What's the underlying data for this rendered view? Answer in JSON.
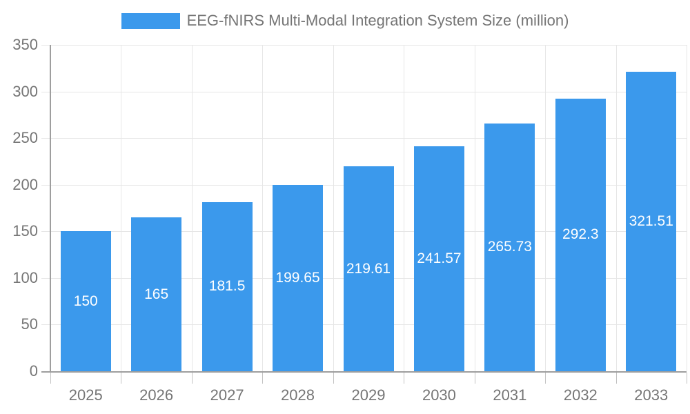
{
  "chart_data": {
    "type": "bar",
    "legend": "EEG-fNIRS Multi-Modal Integration System Size (million)",
    "legend_position": "top",
    "categories": [
      "2025",
      "2026",
      "2027",
      "2028",
      "2029",
      "2030",
      "2031",
      "2032",
      "2033"
    ],
    "values": [
      150,
      165,
      181.5,
      199.65,
      219.61,
      241.57,
      265.73,
      292.3,
      321.51
    ],
    "value_labels": [
      "150",
      "165",
      "181.5",
      "199.65",
      "219.61",
      "241.57",
      "265.73",
      "292.3",
      "321.51"
    ],
    "xlabel": "",
    "ylabel": "",
    "ylim": [
      0,
      350
    ],
    "ytick_interval": 50,
    "ytick_labels": [
      "0",
      "50",
      "100",
      "150",
      "200",
      "250",
      "300",
      "350"
    ],
    "grid": true,
    "colors": {
      "bar": "#3b99ec",
      "bar_label": "#ffffff",
      "axis_text": "#757575",
      "axis_line": "#9e9e9e",
      "grid_line": "#e6e6e6",
      "background": "#ffffff"
    }
  }
}
